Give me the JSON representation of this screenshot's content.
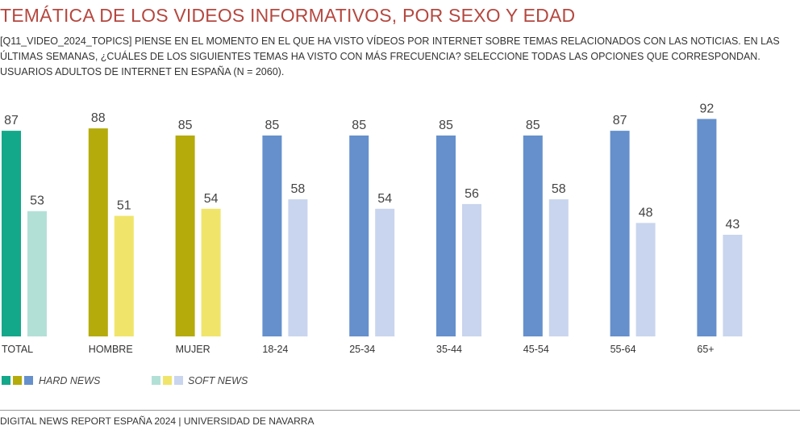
{
  "header": {
    "title": "TEMÁTICA DE LOS VIDEOS INFORMATIVOS, POR SEXO Y EDAD",
    "subtitle": "[Q11_VIDEO_2024_TOPICS] PIENSE EN EL MOMENTO EN EL QUE HA VISTO VÍDEOS POR INTERNET SOBRE TEMAS RELACIONADOS CON LAS NOTICIAS. EN LAS ÚLTIMAS SEMANAS, ¿CUÁLES DE LOS SIGUIENTES TEMAS HA VISTO CON MÁS FRECUENCIA? SELECCIONE TODAS LAS OPCIONES QUE CORRESPONDAN. USUARIOS ADULTOS DE INTERNET EN ESPAÑA (N = 2060)."
  },
  "chart_data": {
    "type": "bar",
    "categories": [
      "TOTAL",
      "HOMBRE",
      "MUJER",
      "18-24",
      "25-34",
      "35-44",
      "45-54",
      "55-64",
      "65+"
    ],
    "series": [
      {
        "name": "HARD NEWS",
        "values": [
          87,
          88,
          85,
          85,
          85,
          85,
          85,
          87,
          92
        ]
      },
      {
        "name": "SOFT NEWS",
        "values": [
          53,
          51,
          54,
          58,
          54,
          56,
          58,
          48,
          43
        ]
      }
    ],
    "ylim": [
      0,
      100
    ],
    "grid": false,
    "legend": "bottom-left",
    "colors": {
      "hard": [
        "#13a88a",
        "#b5ab0a",
        "#b5ab0a",
        "#6590cc",
        "#6590cc",
        "#6590cc",
        "#6590cc",
        "#6590cc",
        "#6590cc"
      ],
      "soft": [
        "#b3e0d6",
        "#f0e56a",
        "#f0e56a",
        "#c9d5ee",
        "#c9d5ee",
        "#c9d5ee",
        "#c9d5ee",
        "#c9d5ee",
        "#c9d5ee"
      ]
    }
  },
  "legend": {
    "hard_label": "HARD NEWS",
    "soft_label": "SOFT NEWS",
    "hard_swatches": [
      "#13a88a",
      "#b5ab0a",
      "#6590cc"
    ],
    "soft_swatches": [
      "#b3e0d6",
      "#f0e56a",
      "#c9d5ee"
    ]
  },
  "footer": {
    "text": "DIGITAL NEWS REPORT ESPAÑA 2024 | UNIVERSIDAD DE NAVARRA"
  }
}
